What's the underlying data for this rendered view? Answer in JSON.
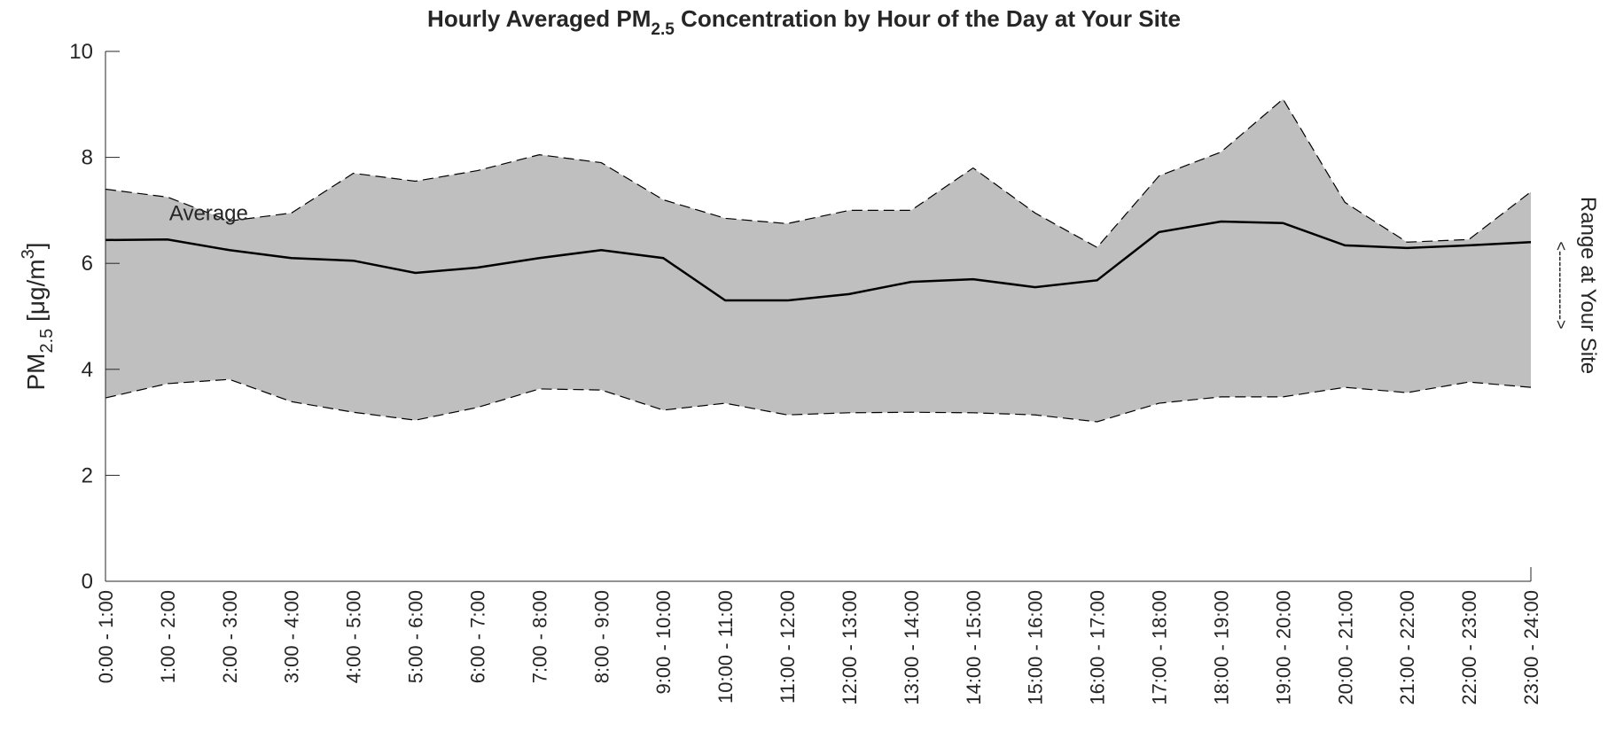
{
  "chart_data": {
    "type": "range-line",
    "title": {
      "text": "Hourly Averaged PM",
      "sub": "2.5",
      "rest": " Concentration by Hour of the Day at Your Site"
    },
    "y_label": {
      "text": "PM",
      "sub": "2.5",
      "mid": " [μg/m",
      "sup": "3",
      "end": "]"
    },
    "categories": [
      "0:00 - 1:00",
      "1:00 - 2:00",
      "2:00 - 3:00",
      "3:00 - 4:00",
      "4:00 - 5:00",
      "5:00 - 6:00",
      "6:00 - 7:00",
      "7:00 - 8:00",
      "8:00 - 9:00",
      "9:00 - 10:00",
      "10:00 - 11:00",
      "11:00 - 12:00",
      "12:00 - 13:00",
      "13:00 - 14:00",
      "14:00 - 15:00",
      "15:00 - 16:00",
      "16:00 - 17:00",
      "17:00 - 18:00",
      "18:00 - 19:00",
      "19:00 - 20:00",
      "20:00 - 21:00",
      "21:00 - 22:00",
      "22:00 - 23:00",
      "23:00 - 24:00"
    ],
    "series": [
      {
        "name": "Average",
        "color": "#000000",
        "values": [
          6.44,
          6.45,
          6.25,
          6.1,
          6.05,
          5.82,
          5.92,
          6.1,
          6.25,
          6.1,
          5.3,
          5.3,
          5.42,
          5.65,
          5.7,
          5.55,
          5.68,
          6.59,
          6.79,
          6.76,
          6.34,
          6.29,
          6.34,
          6.4
        ]
      }
    ],
    "range": {
      "name": "Range at Your Site",
      "arrow": "<------------->",
      "color": "#bfbfbf",
      "upper": [
        7.4,
        7.25,
        6.8,
        6.95,
        7.7,
        7.55,
        7.75,
        8.05,
        7.9,
        7.2,
        6.85,
        6.75,
        7.0,
        7.0,
        7.8,
        6.95,
        6.3,
        7.65,
        8.1,
        9.1,
        7.15,
        6.4,
        6.45,
        7.35
      ],
      "lower": [
        3.46,
        3.73,
        3.81,
        3.39,
        3.19,
        3.04,
        3.28,
        3.63,
        3.61,
        3.23,
        3.36,
        3.14,
        3.18,
        3.19,
        3.18,
        3.14,
        3.01,
        3.36,
        3.48,
        3.48,
        3.66,
        3.56,
        3.76,
        3.66
      ]
    },
    "ylim": [
      0,
      10
    ],
    "yticks": [
      0,
      2,
      4,
      6,
      8,
      10
    ]
  }
}
